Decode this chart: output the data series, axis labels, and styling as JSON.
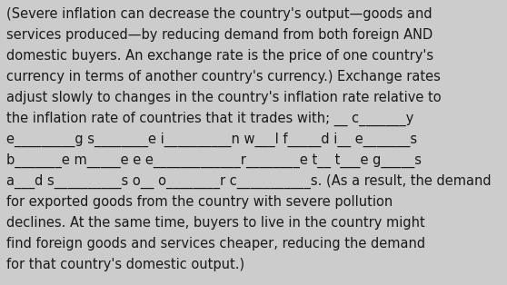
{
  "background_color": "#cccccc",
  "text_color": "#1a1a1a",
  "font_size": 10.5,
  "font_family": "DejaVu Sans",
  "lines": [
    "(Severe inflation can decrease the country's output—goods and",
    "services produced—by reducing demand from both foreign AND",
    "domestic buyers. An exchange rate is the price of one country's",
    "currency in terms of another country's currency.) Exchange rates",
    "adjust slowly to changes in the country's inflation rate relative to",
    "the inflation rate of countries that it trades with; __ c_______y",
    "e_________g s________e i__________n w___l f_____d i__ e_______s",
    "b_______e m_____e e e_____________r________e t__ t___e g_____s",
    "a___d s__________s o__ o________r c___________s. (As a result, the demand",
    "for exported goods from the country with severe pollution",
    "declines. At the same time, buyers to live in the country might",
    "find foreign goods and services cheaper, reducing the demand",
    "for that country's domestic output.)"
  ],
  "figwidth": 5.58,
  "figheight": 3.14,
  "dpi": 100
}
